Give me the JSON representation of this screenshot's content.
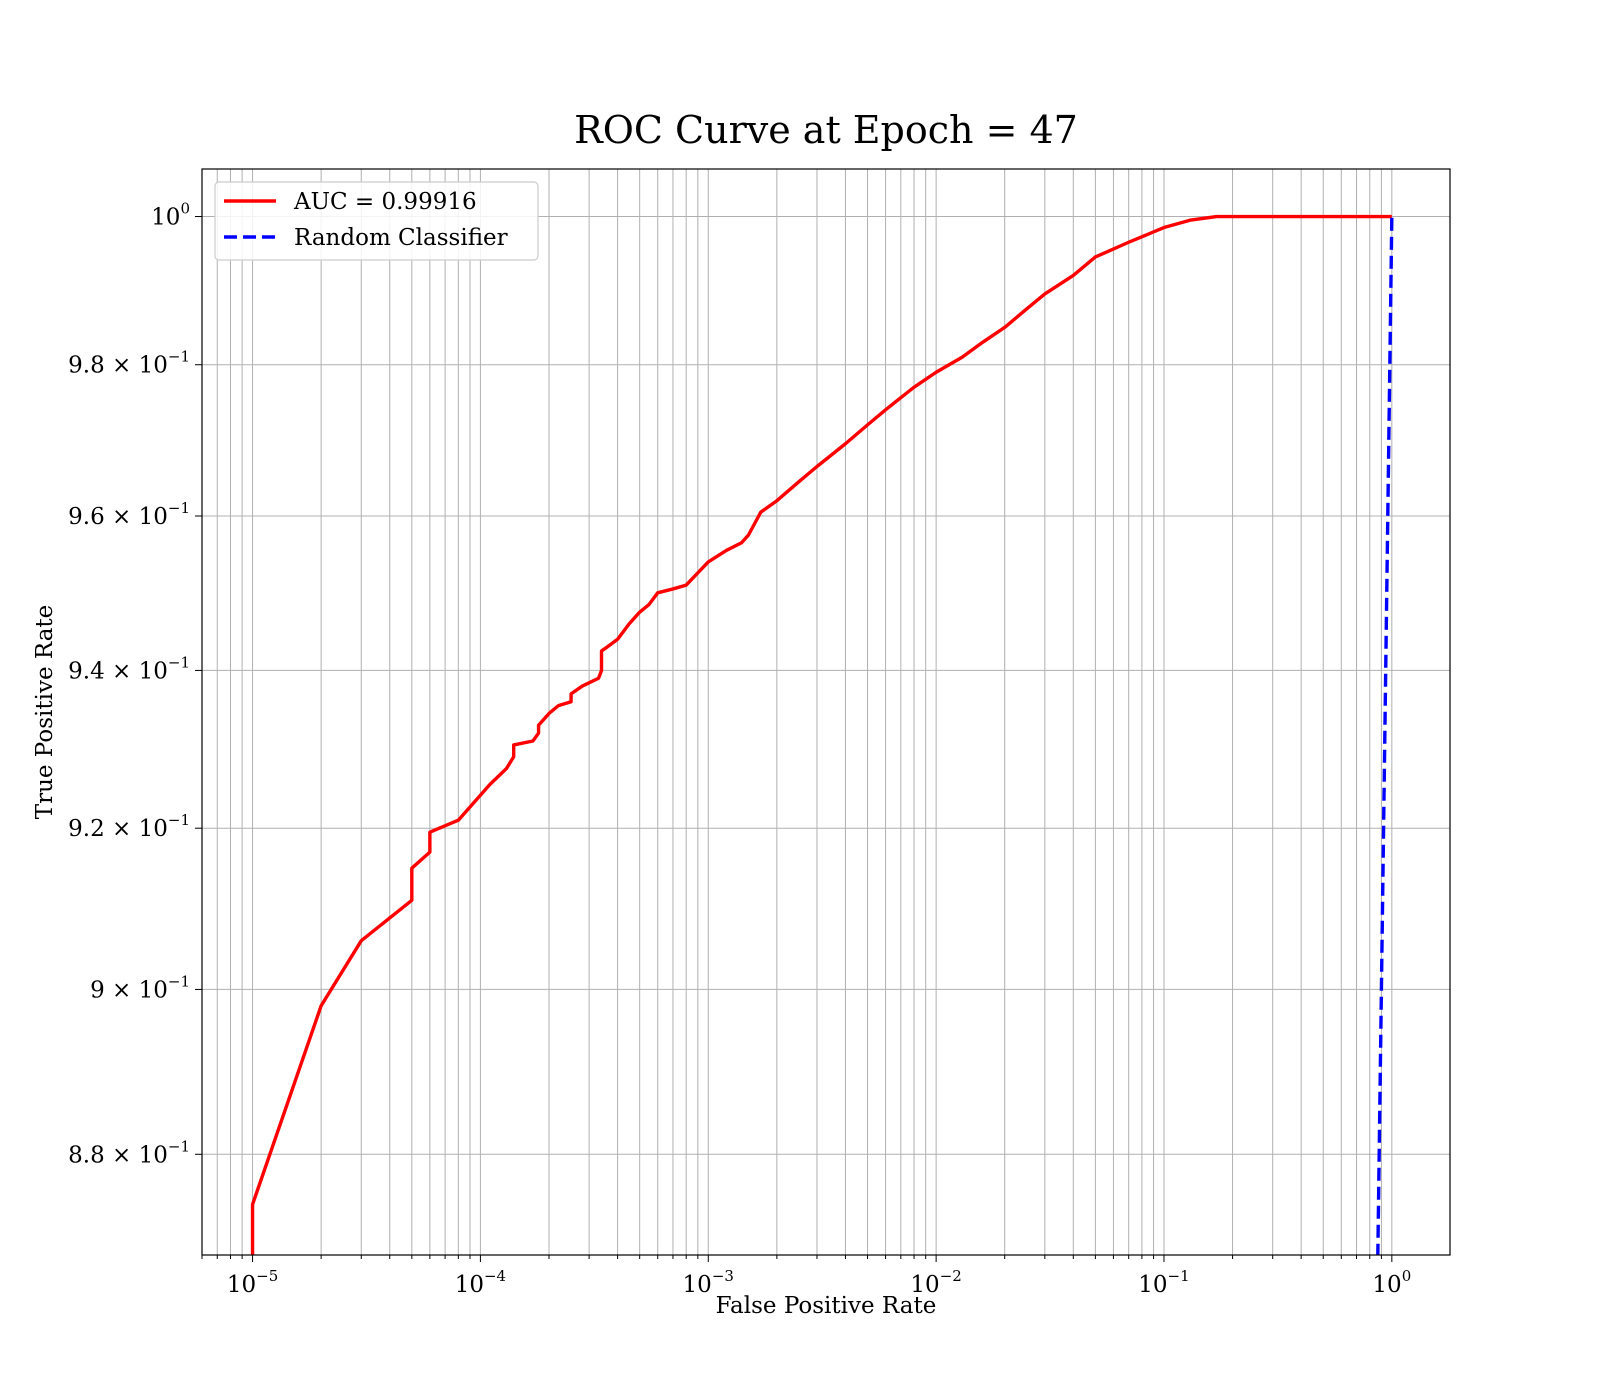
{
  "chart_data": {
    "type": "line",
    "title": "ROC Curve at Epoch = 47",
    "xlabel": "False Positive Rate",
    "ylabel": "True Positive Rate",
    "xscale": "log",
    "yscale": "log",
    "xlim": [
      6e-06,
      1.8
    ],
    "ylim": [
      0.868,
      1.0065
    ],
    "grid": true,
    "grid_which": "both",
    "legend_position": "upper-left",
    "x_ticks": [
      {
        "value": 1e-05,
        "base": "10",
        "exp": "−5"
      },
      {
        "value": 0.0001,
        "base": "10",
        "exp": "−4"
      },
      {
        "value": 0.001,
        "base": "10",
        "exp": "−3"
      },
      {
        "value": 0.01,
        "base": "10",
        "exp": "−2"
      },
      {
        "value": 0.1,
        "base": "10",
        "exp": "−1"
      },
      {
        "value": 1,
        "base": "10",
        "exp": "0"
      }
    ],
    "y_ticks": [
      {
        "value": 0.88,
        "base": "8.8 × 10",
        "exp": "−1"
      },
      {
        "value": 0.9,
        "base": "9 × 10",
        "exp": "−1"
      },
      {
        "value": 0.92,
        "base": "9.2 × 10",
        "exp": "−1"
      },
      {
        "value": 0.94,
        "base": "9.4 × 10",
        "exp": "−1"
      },
      {
        "value": 0.96,
        "base": "9.6 × 10",
        "exp": "−1"
      },
      {
        "value": 0.98,
        "base": "9.8 × 10",
        "exp": "−1"
      },
      {
        "value": 1.0,
        "base": "10",
        "exp": "0"
      }
    ],
    "series": [
      {
        "name": "AUC = 0.99916",
        "color": "#ff0000",
        "linestyle": "solid",
        "x": [
          1e-05,
          1e-05,
          2e-05,
          3e-05,
          5e-05,
          5e-05,
          6e-05,
          6e-05,
          8e-05,
          0.00011,
          0.00013,
          0.00014,
          0.00014,
          0.00017,
          0.00018,
          0.00018,
          0.0002,
          0.00022,
          0.00025,
          0.00025,
          0.00028,
          0.00033,
          0.00034,
          0.00034,
          0.00036,
          0.0004,
          0.00045,
          0.0005,
          0.00055,
          0.0006,
          0.0007,
          0.0008,
          0.001,
          0.0012,
          0.0014,
          0.0015,
          0.0017,
          0.002,
          0.0025,
          0.003,
          0.004,
          0.005,
          0.006,
          0.008,
          0.01,
          0.013,
          0.016,
          0.02,
          0.025,
          0.03,
          0.04,
          0.05,
          0.07,
          0.1,
          0.13,
          0.17,
          0.25,
          0.5,
          1.0
        ],
        "y": [
          0.868,
          0.874,
          0.898,
          0.906,
          0.911,
          0.915,
          0.917,
          0.9195,
          0.921,
          0.9255,
          0.9275,
          0.929,
          0.9305,
          0.931,
          0.932,
          0.933,
          0.9345,
          0.9355,
          0.936,
          0.937,
          0.938,
          0.939,
          0.94,
          0.9425,
          0.943,
          0.944,
          0.946,
          0.9475,
          0.9485,
          0.95,
          0.9505,
          0.951,
          0.954,
          0.9555,
          0.9565,
          0.9575,
          0.9605,
          0.962,
          0.9645,
          0.9665,
          0.9695,
          0.972,
          0.974,
          0.977,
          0.979,
          0.981,
          0.983,
          0.985,
          0.9875,
          0.9895,
          0.992,
          0.9945,
          0.9965,
          0.9985,
          0.9995,
          1.0,
          1.0,
          1.0,
          1.0
        ]
      },
      {
        "name": "Random Classifier",
        "color": "#0000ff",
        "linestyle": "dashed",
        "x": [
          0.85,
          1.0
        ],
        "y": [
          0.85,
          1.0
        ]
      }
    ]
  }
}
